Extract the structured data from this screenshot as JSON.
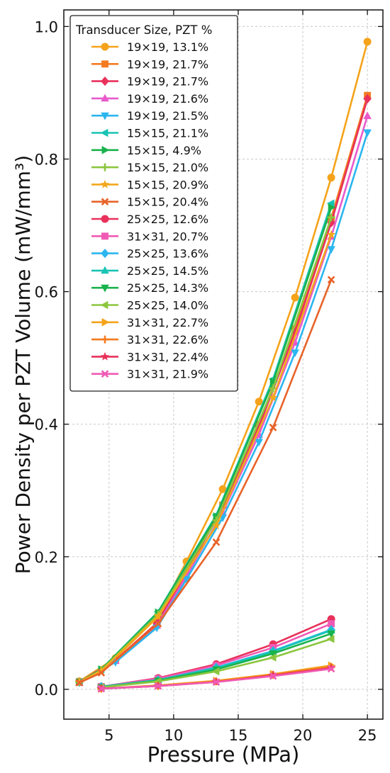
{
  "chart_data": {
    "type": "line",
    "xlabel": "Pressure (MPa)",
    "ylabel": "Power Density per PZT Volume (mW/mm³)",
    "xlim": [
      1.5,
      26.2
    ],
    "ylim": [
      -0.045,
      1.025
    ],
    "xticks": [
      5,
      10,
      15,
      20,
      25
    ],
    "yticks": [
      0.0,
      0.2,
      0.4,
      0.6,
      0.8,
      1.0
    ],
    "ytick_labels": [
      "0.0",
      "0.2",
      "0.4",
      "0.6",
      "0.8",
      "1.0"
    ],
    "grid": true,
    "legend_title": "Transducer Size, PZT %",
    "legend_position": "top-left",
    "series": [
      {
        "name": "19×19, 13.1%",
        "color": "#F5A31A",
        "marker": "circle",
        "x": [
          2.7,
          5.5,
          8.7,
          11.0,
          13.8,
          16.6,
          19.4,
          22.2,
          25.0
        ],
        "y": [
          0.012,
          0.047,
          0.108,
          0.193,
          0.302,
          0.434,
          0.591,
          0.772,
          0.977
        ]
      },
      {
        "name": "19×19, 21.7%",
        "color": "#F47B20",
        "marker": "square",
        "x": [
          2.7,
          5.5,
          8.7,
          11.0,
          13.8,
          16.6,
          19.4,
          22.2,
          25.0
        ],
        "y": [
          0.011,
          0.044,
          0.1,
          0.178,
          0.278,
          0.4,
          0.544,
          0.711,
          0.896
        ]
      },
      {
        "name": "19×19, 21.7%",
        "color": "#E8315B",
        "marker": "diamond",
        "x": [
          2.7,
          5.5,
          8.7,
          11.0,
          13.8,
          16.6,
          19.4,
          22.2,
          25.0
        ],
        "y": [
          0.011,
          0.044,
          0.099,
          0.176,
          0.275,
          0.396,
          0.539,
          0.704,
          0.891
        ]
      },
      {
        "name": "19×19, 21.6%",
        "color": "#E85ACB",
        "marker": "triangle-up",
        "x": [
          2.7,
          5.5,
          8.7,
          11.0,
          13.8,
          16.6,
          19.4,
          22.2,
          25.0
        ],
        "y": [
          0.01,
          0.043,
          0.096,
          0.171,
          0.267,
          0.384,
          0.523,
          0.683,
          0.865
        ]
      },
      {
        "name": "19×19, 21.5%",
        "color": "#2BB6EF",
        "marker": "triangle-down",
        "x": [
          2.7,
          5.5,
          8.7,
          11.0,
          13.8,
          16.6,
          19.4,
          22.2,
          25.0
        ],
        "y": [
          0.01,
          0.041,
          0.093,
          0.166,
          0.259,
          0.373,
          0.508,
          0.664,
          0.84
        ]
      },
      {
        "name": "15×15, 21.1%",
        "color": "#18C4B4",
        "marker": "triangle-left",
        "x": [
          2.7,
          4.4,
          8.8,
          13.3,
          17.7,
          22.2
        ],
        "y": [
          0.011,
          0.03,
          0.117,
          0.263,
          0.468,
          0.733
        ]
      },
      {
        "name": "15×15, 4.9%",
        "color": "#19B24B",
        "marker": "triangle-right",
        "x": [
          2.7,
          4.4,
          8.8,
          13.3,
          17.7,
          22.2
        ],
        "y": [
          0.011,
          0.03,
          0.116,
          0.261,
          0.464,
          0.727
        ]
      },
      {
        "name": "15×15, 21.0%",
        "color": "#8CC63F",
        "marker": "plus",
        "x": [
          2.7,
          4.4,
          8.8,
          13.3,
          17.7,
          22.2
        ],
        "y": [
          0.011,
          0.029,
          0.113,
          0.255,
          0.454,
          0.712
        ]
      },
      {
        "name": "15×15, 20.9%",
        "color": "#F2A71B",
        "marker": "star",
        "x": [
          2.7,
          4.4,
          8.8,
          13.3,
          17.7,
          22.2
        ],
        "y": [
          0.011,
          0.028,
          0.11,
          0.247,
          0.44,
          0.686
        ]
      },
      {
        "name": "15×15, 20.4%",
        "color": "#E8632A",
        "marker": "x",
        "x": [
          2.7,
          4.4,
          8.8,
          13.3,
          17.7,
          22.2
        ],
        "y": [
          0.01,
          0.025,
          0.099,
          0.222,
          0.395,
          0.618
        ]
      },
      {
        "name": "25×25, 12.6%",
        "color": "#E8315B",
        "marker": "circle",
        "x": [
          4.4,
          8.8,
          13.3,
          17.7,
          22.2
        ],
        "y": [
          0.004,
          0.017,
          0.038,
          0.068,
          0.106
        ]
      },
      {
        "name": "31×31, 20.7%",
        "color": "#F05AB4",
        "marker": "square",
        "x": [
          4.4,
          8.8,
          13.3,
          17.7,
          22.2
        ],
        "y": [
          0.004,
          0.016,
          0.036,
          0.063,
          0.099
        ]
      },
      {
        "name": "25×25, 13.6%",
        "color": "#2BB6EF",
        "marker": "diamond",
        "x": [
          4.4,
          8.8,
          13.3,
          17.7,
          22.2
        ],
        "y": [
          0.004,
          0.014,
          0.033,
          0.058,
          0.09
        ]
      },
      {
        "name": "25×25, 14.5%",
        "color": "#18C4B4",
        "marker": "triangle-up",
        "x": [
          4.4,
          8.8,
          13.3,
          17.7,
          22.2
        ],
        "y": [
          0.004,
          0.014,
          0.032,
          0.057,
          0.089
        ]
      },
      {
        "name": "25×25, 14.3%",
        "color": "#19B24B",
        "marker": "triangle-down",
        "x": [
          4.4,
          8.8,
          13.3,
          17.7,
          22.2
        ],
        "y": [
          0.003,
          0.013,
          0.03,
          0.054,
          0.084
        ]
      },
      {
        "name": "25×25, 14.0%",
        "color": "#8CC63F",
        "marker": "triangle-left",
        "x": [
          4.4,
          8.8,
          13.3,
          17.7,
          22.2
        ],
        "y": [
          0.003,
          0.012,
          0.027,
          0.048,
          0.076
        ]
      },
      {
        "name": "31×31, 22.7%",
        "color": "#F5A31A",
        "marker": "triangle-right",
        "x": [
          4.4,
          8.8,
          13.3,
          17.7,
          22.2
        ],
        "y": [
          0.001,
          0.006,
          0.013,
          0.023,
          0.036
        ]
      },
      {
        "name": "31×31, 22.6%",
        "color": "#F47B20",
        "marker": "plus",
        "x": [
          4.4,
          8.8,
          13.3,
          17.7,
          22.2
        ],
        "y": [
          0.001,
          0.005,
          0.012,
          0.022,
          0.034
        ]
      },
      {
        "name": "31×31, 22.4%",
        "color": "#E8315B",
        "marker": "star",
        "x": [
          4.4,
          8.8,
          13.3,
          17.7,
          22.2
        ],
        "y": [
          0.001,
          0.005,
          0.011,
          0.021,
          0.032
        ]
      },
      {
        "name": "31×31, 21.9%",
        "color": "#F05AB4",
        "marker": "x",
        "x": [
          4.4,
          8.8,
          13.3,
          17.7,
          22.2
        ],
        "y": [
          0.001,
          0.005,
          0.011,
          0.02,
          0.031
        ]
      }
    ]
  }
}
